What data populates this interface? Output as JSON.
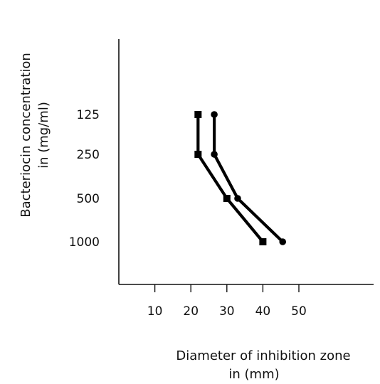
{
  "chart_data": {
    "type": "line",
    "xlabel_lines": [
      "Diameter of inhibition zone",
      "in (mm)"
    ],
    "ylabel_lines": [
      "Bacteriocin concentration",
      "in (mg/ml)"
    ],
    "x_ticks": [
      10,
      20,
      30,
      40,
      50
    ],
    "y_ticks": [
      "125",
      "250",
      "500",
      "1000"
    ],
    "xlim": [
      0,
      71
    ],
    "categories": [
      "125",
      "250",
      "500",
      "1000"
    ],
    "series": [
      {
        "marker": "square",
        "x": [
          22,
          22,
          30,
          40
        ]
      },
      {
        "marker": "circle",
        "x": [
          26.5,
          26.5,
          33,
          45.5
        ]
      }
    ]
  }
}
